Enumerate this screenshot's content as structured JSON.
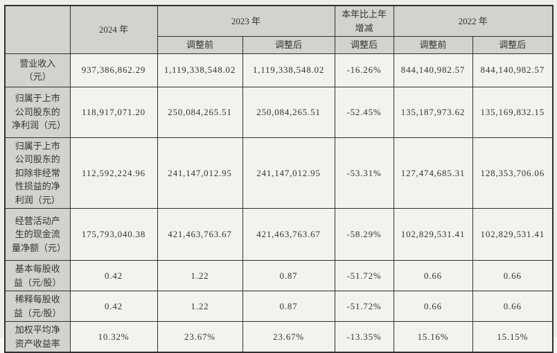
{
  "colors": {
    "page_bg": "#eeedea",
    "header_bg": "#d3d2cf",
    "cell_bg": "#f3f2ef",
    "border": "#2f2f2f",
    "text": "#333333"
  },
  "table": {
    "header": {
      "corner": "",
      "col_2024": "2024 年",
      "col_2023": "2023 年",
      "col_change": "本年比上年增减",
      "col_2022": "2022 年",
      "sub_2023_before": "调整前",
      "sub_2023_after": "调整后",
      "sub_change_after": "调整后",
      "sub_2022_before": "调整前",
      "sub_2022_after": "调整后"
    },
    "rows": [
      {
        "label": "营业收入（元）",
        "values": [
          "937,386,862.29",
          "1,119,338,548.02",
          "1,119,338,548.02",
          "-16.26%",
          "844,140,982.57",
          "844,140,982.57"
        ]
      },
      {
        "label": "归属于上市公司股东的净利润（元）",
        "values": [
          "118,917,071.20",
          "250,084,265.51",
          "250,084,265.51",
          "-52.45%",
          "135,187,973.62",
          "135,169,832.15"
        ]
      },
      {
        "label": "归属于上市公司股东的扣除非经常性损益的净利润（元）",
        "values": [
          "112,592,224.96",
          "241,147,012.95",
          "241,147,012.95",
          "-53.31%",
          "127,474,685.31",
          "128,353,706.06"
        ]
      },
      {
        "label": "经营活动产生的现金流量净额（元）",
        "values": [
          "175,793,040.38",
          "421,463,763.67",
          "421,463,763.67",
          "-58.29%",
          "102,829,531.41",
          "102,829,531.41"
        ]
      },
      {
        "label": "基本每股收益（元/股）",
        "values": [
          "0.42",
          "1.22",
          "0.87",
          "-51.72%",
          "0.66",
          "0.66"
        ]
      },
      {
        "label": "稀释每股收益（元/股）",
        "values": [
          "0.42",
          "1.22",
          "0.87",
          "-51.72%",
          "0.66",
          "0.66"
        ]
      },
      {
        "label": "加权平均净资产收益率",
        "values": [
          "10.32%",
          "23.67%",
          "23.67%",
          "-13.35%",
          "15.16%",
          "15.15%"
        ]
      }
    ]
  }
}
